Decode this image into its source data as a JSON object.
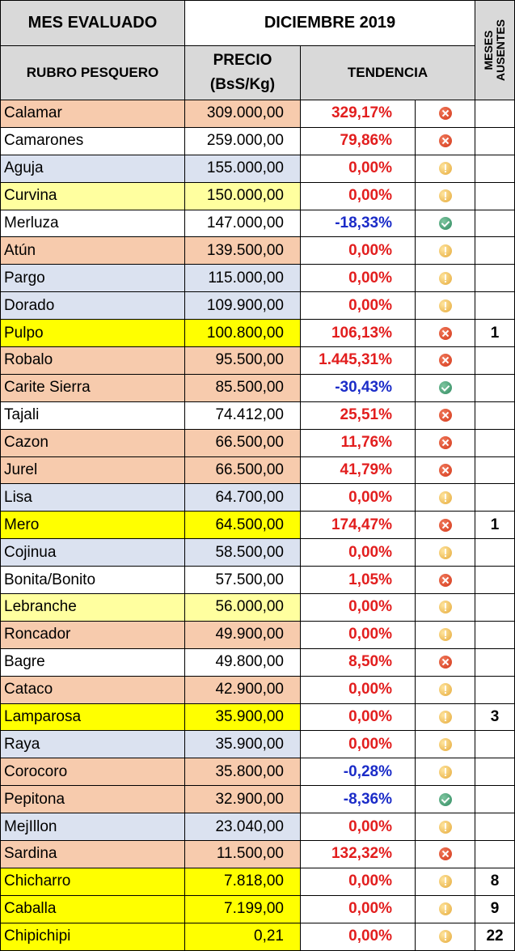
{
  "header": {
    "mes_label": "MES EVALUADO",
    "mes_value": "DICIEMBRE 2019",
    "col_rubro": "RUBRO PESQUERO",
    "col_precio_line1": "PRECIO",
    "col_precio_line2": "(BsS/Kg)",
    "col_tendencia": "TENDENCIA",
    "col_meses_line1": "MESES",
    "col_meses_line2": "AUSENTES"
  },
  "colors": {
    "header_gray": "#d9d9d9",
    "salmon": "#f7cbad",
    "lightblue": "#dbe2f0",
    "lightyellow": "#ffff9f",
    "yellow": "#ffff00",
    "white": "#ffffff",
    "red_text": "#e21e1e",
    "blue_text": "#1b2cc8"
  },
  "rows": [
    {
      "rubro": "Calamar",
      "precio": "309.000,00",
      "tendencia": "329,17%",
      "estado": "alza",
      "ausentes": "",
      "fondo": "salmon"
    },
    {
      "rubro": "Camarones",
      "precio": "259.000,00",
      "tendencia": "79,86%",
      "estado": "alza",
      "ausentes": "",
      "fondo": "white"
    },
    {
      "rubro": "Aguja",
      "precio": "155.000,00",
      "tendencia": "0,00%",
      "estado": "estable",
      "ausentes": "",
      "fondo": "lightblue"
    },
    {
      "rubro": "Curvina",
      "precio": "150.000,00",
      "tendencia": "0,00%",
      "estado": "estable",
      "ausentes": "",
      "fondo": "lightyellow"
    },
    {
      "rubro": "Merluza",
      "precio": "147.000,00",
      "tendencia": "-18,33%",
      "estado": "baja",
      "ausentes": "",
      "fondo": "white"
    },
    {
      "rubro": "Atún",
      "precio": "139.500,00",
      "tendencia": "0,00%",
      "estado": "estable",
      "ausentes": "",
      "fondo": "salmon"
    },
    {
      "rubro": "Pargo",
      "precio": "115.000,00",
      "tendencia": "0,00%",
      "estado": "estable",
      "ausentes": "",
      "fondo": "lightblue"
    },
    {
      "rubro": "Dorado",
      "precio": "109.900,00",
      "tendencia": "0,00%",
      "estado": "estable",
      "ausentes": "",
      "fondo": "lightblue"
    },
    {
      "rubro": "Pulpo",
      "precio": "100.800,00",
      "tendencia": "106,13%",
      "estado": "alza",
      "ausentes": "1",
      "fondo": "yellow"
    },
    {
      "rubro": "Robalo",
      "precio": "95.500,00",
      "tendencia": "1.445,31%",
      "estado": "alza",
      "ausentes": "",
      "fondo": "salmon"
    },
    {
      "rubro": "Carite Sierra",
      "precio": "85.500,00",
      "tendencia": "-30,43%",
      "estado": "baja",
      "ausentes": "",
      "fondo": "salmon"
    },
    {
      "rubro": "Tajali",
      "precio": "74.412,00",
      "tendencia": "25,51%",
      "estado": "alza",
      "ausentes": "",
      "fondo": "white"
    },
    {
      "rubro": "Cazon",
      "precio": "66.500,00",
      "tendencia": "11,76%",
      "estado": "alza",
      "ausentes": "",
      "fondo": "salmon"
    },
    {
      "rubro": "Jurel",
      "precio": "66.500,00",
      "tendencia": "41,79%",
      "estado": "alza",
      "ausentes": "",
      "fondo": "salmon"
    },
    {
      "rubro": "Lisa",
      "precio": "64.700,00",
      "tendencia": "0,00%",
      "estado": "estable",
      "ausentes": "",
      "fondo": "lightblue"
    },
    {
      "rubro": "Mero",
      "precio": "64.500,00",
      "tendencia": "174,47%",
      "estado": "alza",
      "ausentes": "1",
      "fondo": "yellow"
    },
    {
      "rubro": "Cojinua",
      "precio": "58.500,00",
      "tendencia": "0,00%",
      "estado": "estable",
      "ausentes": "",
      "fondo": "lightblue"
    },
    {
      "rubro": "Bonita/Bonito",
      "precio": "57.500,00",
      "tendencia": "1,05%",
      "estado": "alza",
      "ausentes": "",
      "fondo": "white"
    },
    {
      "rubro": "Lebranche",
      "precio": "56.000,00",
      "tendencia": "0,00%",
      "estado": "estable",
      "ausentes": "",
      "fondo": "lightyellow"
    },
    {
      "rubro": "Roncador",
      "precio": "49.900,00",
      "tendencia": "0,00%",
      "estado": "estable",
      "ausentes": "",
      "fondo": "salmon"
    },
    {
      "rubro": "Bagre",
      "precio": "49.800,00",
      "tendencia": "8,50%",
      "estado": "alza",
      "ausentes": "",
      "fondo": "white"
    },
    {
      "rubro": "Cataco",
      "precio": "42.900,00",
      "tendencia": "0,00%",
      "estado": "estable",
      "ausentes": "",
      "fondo": "salmon"
    },
    {
      "rubro": "Lamparosa",
      "precio": "35.900,00",
      "tendencia": "0,00%",
      "estado": "estable",
      "ausentes": "3",
      "fondo": "yellow"
    },
    {
      "rubro": "Raya",
      "precio": "35.900,00",
      "tendencia": "0,00%",
      "estado": "estable",
      "ausentes": "",
      "fondo": "lightblue"
    },
    {
      "rubro": "Corocoro",
      "precio": "35.800,00",
      "tendencia": "-0,28%",
      "estado": "estable",
      "ausentes": "",
      "fondo": "salmon"
    },
    {
      "rubro": "Pepitona",
      "precio": "32.900,00",
      "tendencia": "-8,36%",
      "estado": "baja",
      "ausentes": "",
      "fondo": "salmon"
    },
    {
      "rubro": "MejIllon",
      "precio": "23.040,00",
      "tendencia": "0,00%",
      "estado": "estable",
      "ausentes": "",
      "fondo": "lightblue"
    },
    {
      "rubro": "Sardina",
      "precio": "11.500,00",
      "tendencia": "132,32%",
      "estado": "alza",
      "ausentes": "",
      "fondo": "salmon"
    },
    {
      "rubro": "Chicharro",
      "precio": "7.818,00",
      "tendencia": "0,00%",
      "estado": "estable",
      "ausentes": "8",
      "fondo": "yellow"
    },
    {
      "rubro": "Caballa",
      "precio": "7.199,00",
      "tendencia": "0,00%",
      "estado": "estable",
      "ausentes": "9",
      "fondo": "yellow"
    },
    {
      "rubro": "Chipichipi",
      "precio": "0,21",
      "tendencia": "0,00%",
      "estado": "estable",
      "ausentes": "22",
      "fondo": "yellow"
    }
  ]
}
